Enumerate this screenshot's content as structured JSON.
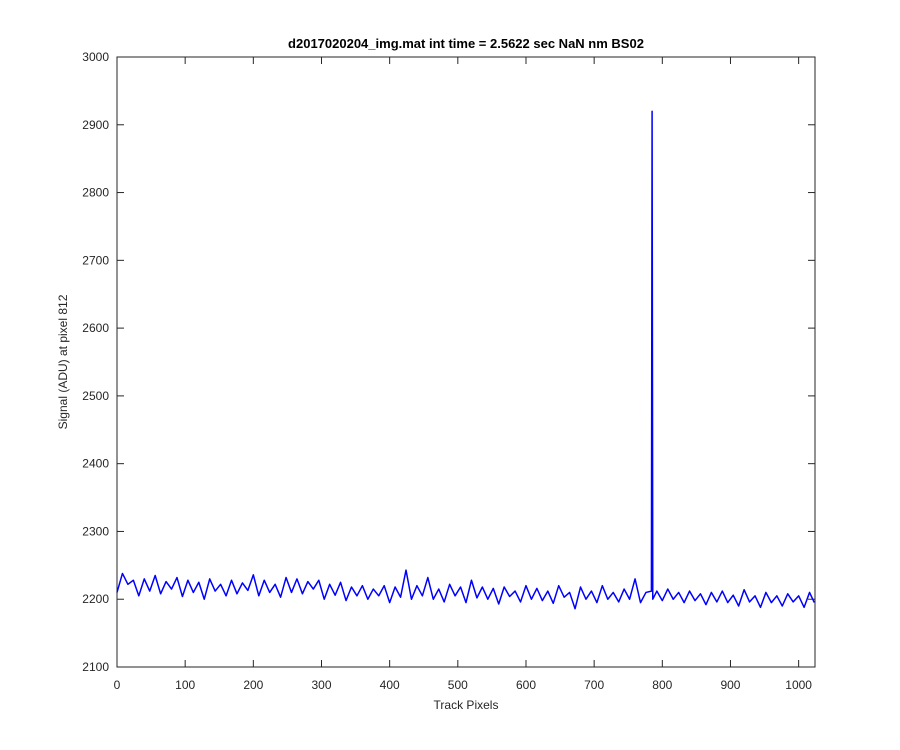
{
  "chart_data": {
    "type": "line",
    "title": "d2017020204_img.mat int time = 2.5622 sec  NaN nm BS02",
    "x_label": "Track Pixels",
    "y_label": "Signal (ADU) at pixel 812",
    "color": "#0000ff",
    "x": [
      0,
      8,
      16,
      24,
      32,
      40,
      48,
      56,
      64,
      72,
      80,
      88,
      96,
      104,
      112,
      120,
      128,
      136,
      144,
      152,
      160,
      168,
      176,
      184,
      192,
      200,
      208,
      216,
      224,
      232,
      240,
      248,
      256,
      264,
      272,
      280,
      288,
      296,
      304,
      312,
      320,
      328,
      336,
      344,
      352,
      360,
      368,
      376,
      384,
      392,
      400,
      408,
      416,
      424,
      432,
      440,
      448,
      456,
      464,
      472,
      480,
      488,
      496,
      504,
      512,
      520,
      528,
      536,
      544,
      552,
      560,
      568,
      576,
      584,
      592,
      600,
      608,
      616,
      624,
      632,
      640,
      648,
      656,
      664,
      672,
      680,
      688,
      696,
      704,
      712,
      720,
      728,
      736,
      744,
      752,
      760,
      768,
      776,
      784,
      785,
      786,
      792,
      800,
      808,
      816,
      824,
      832,
      840,
      848,
      856,
      864,
      872,
      880,
      888,
      896,
      904,
      912,
      920,
      928,
      936,
      944,
      952,
      960,
      968,
      976,
      984,
      992,
      1000,
      1008,
      1016,
      1023
    ],
    "values": [
      2210,
      2238,
      2222,
      2228,
      2205,
      2230,
      2212,
      2235,
      2208,
      2226,
      2215,
      2232,
      2204,
      2228,
      2210,
      2225,
      2200,
      2230,
      2212,
      2222,
      2205,
      2228,
      2208,
      2224,
      2213,
      2236,
      2205,
      2228,
      2210,
      2222,
      2203,
      2232,
      2210,
      2230,
      2208,
      2226,
      2215,
      2228,
      2200,
      2222,
      2206,
      2225,
      2198,
      2218,
      2205,
      2220,
      2200,
      2215,
      2205,
      2220,
      2195,
      2218,
      2203,
      2243,
      2200,
      2220,
      2205,
      2232,
      2200,
      2215,
      2196,
      2222,
      2205,
      2218,
      2195,
      2228,
      2202,
      2218,
      2200,
      2216,
      2193,
      2218,
      2204,
      2212,
      2196,
      2220,
      2200,
      2216,
      2198,
      2212,
      2194,
      2220,
      2203,
      2210,
      2186,
      2218,
      2200,
      2212,
      2195,
      2220,
      2200,
      2210,
      2196,
      2215,
      2200,
      2230,
      2195,
      2210,
      2212,
      2920,
      2200,
      2212,
      2198,
      2215,
      2200,
      2210,
      2195,
      2212,
      2198,
      2208,
      2192,
      2210,
      2196,
      2212,
      2195,
      2206,
      2190,
      2214,
      2196,
      2205,
      2188,
      2210,
      2195,
      2205,
      2190,
      2208,
      2196,
      2205,
      2188,
      2210,
      2195
    ],
    "xlim": [
      0,
      1024
    ],
    "ylim": [
      2100,
      3000
    ],
    "xticks": [
      0,
      100,
      200,
      300,
      400,
      500,
      600,
      700,
      800,
      900,
      1000
    ],
    "yticks": [
      2100,
      2200,
      2300,
      2400,
      2500,
      2600,
      2700,
      2800,
      2900,
      3000
    ]
  }
}
